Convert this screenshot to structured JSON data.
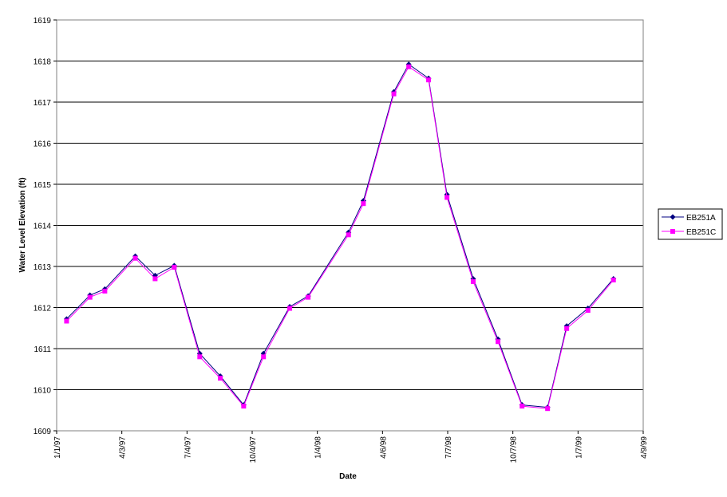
{
  "chart_data": {
    "type": "line",
    "xlabel": "Date",
    "ylabel": "Water Level Elevation (ft)",
    "ylim": [
      1609,
      1619
    ],
    "y_ticks": [
      "1609",
      "1610",
      "1611",
      "1612",
      "1613",
      "1614",
      "1615",
      "1616",
      "1617",
      "1618",
      "1619"
    ],
    "x_ticks": [
      "1/1/97",
      "4/3/97",
      "7/4/97",
      "10/4/97",
      "1/4/98",
      "4/6/98",
      "7/7/98",
      "10/7/98",
      "1/7/99",
      "4/9/99"
    ],
    "grid": "horizontal",
    "legend": "right",
    "x": [
      "1/15/97",
      "2/17/97",
      "3/10/97",
      "4/22/97",
      "5/20/97",
      "6/16/97",
      "7/22/97",
      "8/20/97",
      "9/22/97",
      "10/20/97",
      "11/26/97",
      "12/22/97",
      "2/17/98",
      "3/10/98",
      "4/22/98",
      "5/13/98",
      "6/10/98",
      "7/6/98",
      "8/12/98",
      "9/16/98",
      "10/20/98",
      "11/25/98",
      "12/22/98",
      "1/21/99",
      "2/26/99"
    ],
    "series": [
      {
        "name": "EB251A",
        "color": "#000080",
        "marker": "diamond",
        "values": [
          1611.72,
          1612.3,
          1612.45,
          1613.25,
          1612.78,
          1613.02,
          1610.88,
          1610.33,
          1609.63,
          1610.88,
          1612.02,
          1612.28,
          1613.83,
          1614.6,
          1617.25,
          1617.92,
          1617.58,
          1614.75,
          1612.7,
          1611.23,
          1609.63,
          1609.57,
          1611.55,
          1611.98,
          1612.7
        ]
      },
      {
        "name": "EB251C",
        "color": "#ff00ff",
        "marker": "square",
        "values": [
          1611.67,
          1612.25,
          1612.4,
          1613.2,
          1612.7,
          1612.98,
          1610.8,
          1610.28,
          1609.6,
          1610.8,
          1611.98,
          1612.25,
          1613.77,
          1614.53,
          1617.2,
          1617.86,
          1617.54,
          1614.68,
          1612.63,
          1611.17,
          1609.6,
          1609.54,
          1611.49,
          1611.93,
          1612.67
        ]
      }
    ]
  }
}
